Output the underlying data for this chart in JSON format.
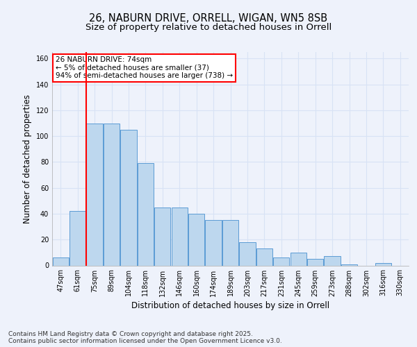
{
  "title1": "26, NABURN DRIVE, ORRELL, WIGAN, WN5 8SB",
  "title2": "Size of property relative to detached houses in Orrell",
  "xlabel": "Distribution of detached houses by size in Orrell",
  "ylabel": "Number of detached properties",
  "categories": [
    "47sqm",
    "61sqm",
    "75sqm",
    "89sqm",
    "104sqm",
    "118sqm",
    "132sqm",
    "146sqm",
    "160sqm",
    "174sqm",
    "189sqm",
    "203sqm",
    "217sqm",
    "231sqm",
    "245sqm",
    "259sqm",
    "273sqm",
    "288sqm",
    "302sqm",
    "316sqm",
    "330sqm"
  ],
  "values": [
    6,
    42,
    110,
    110,
    105,
    79,
    45,
    45,
    40,
    35,
    35,
    18,
    13,
    6,
    10,
    5,
    7,
    1,
    0,
    2,
    0
  ],
  "bar_color": "#bdd7ee",
  "bar_edge_color": "#5b9bd5",
  "red_line_index": 2,
  "annotation_text": "26 NABURN DRIVE: 74sqm\n← 5% of detached houses are smaller (37)\n94% of semi-detached houses are larger (738) →",
  "footer_text": "Contains HM Land Registry data © Crown copyright and database right 2025.\nContains public sector information licensed under the Open Government Licence v3.0.",
  "ylim": [
    0,
    165
  ],
  "yticks": [
    0,
    20,
    40,
    60,
    80,
    100,
    120,
    140,
    160
  ],
  "bg_color": "#eef2fb",
  "grid_color": "#d8e2f5",
  "title_fontsize": 10.5,
  "subtitle_fontsize": 9.5,
  "axis_label_fontsize": 8.5,
  "tick_fontsize": 7,
  "footer_fontsize": 6.5
}
